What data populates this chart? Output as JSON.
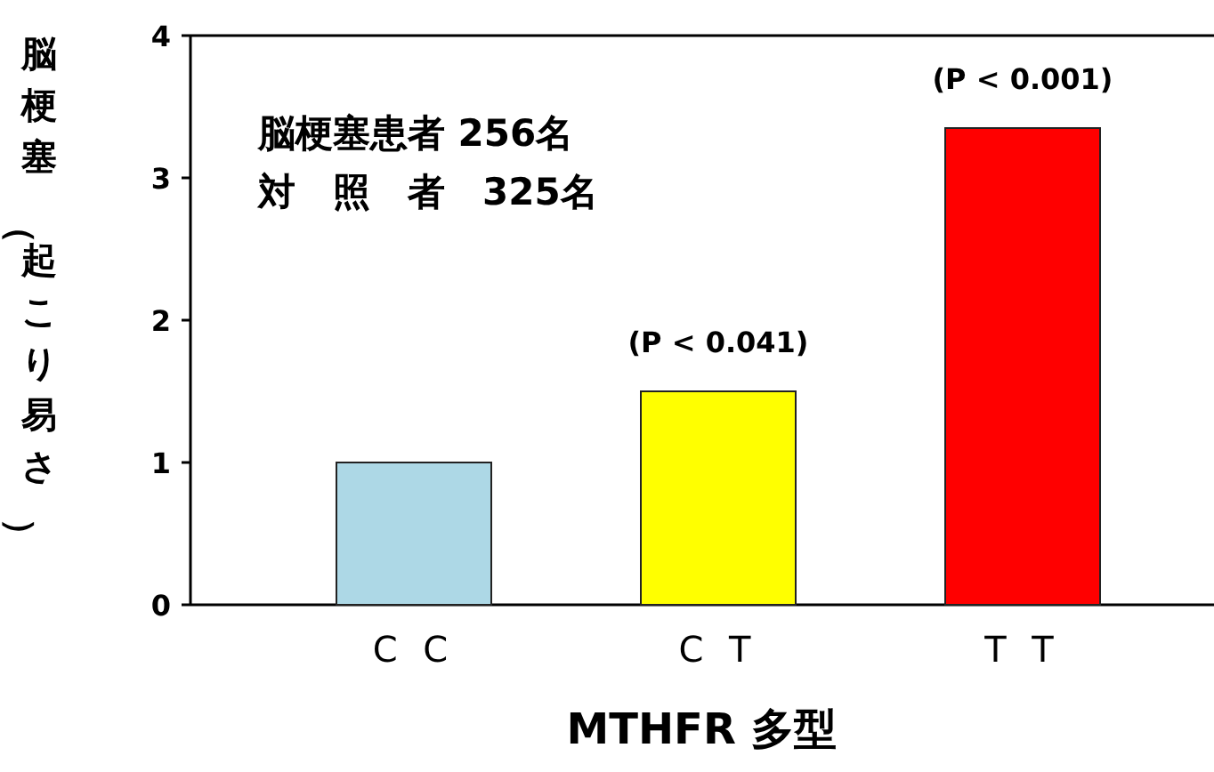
{
  "chart_data": {
    "type": "bar",
    "categories": [
      "C C",
      "C T",
      "T T"
    ],
    "values": [
      1.0,
      1.5,
      3.35
    ],
    "colors": [
      "#add8e6",
      "#ffff00",
      "#ff0000"
    ],
    "xlabel": "MTHFR 多型",
    "ylabel": "脳梗塞（起こり易さ）",
    "ylim": [
      0,
      4
    ],
    "yticks": [
      0,
      1,
      2,
      3,
      4
    ],
    "annotations": [
      "脳梗塞患者 256名",
      "対　照　者　325名",
      {
        "text": "(P < 0.041)",
        "x": "C T",
        "y": 1.5
      },
      {
        "text": "(P < 0.001)",
        "x": "T T",
        "y": 3.35
      }
    ]
  }
}
